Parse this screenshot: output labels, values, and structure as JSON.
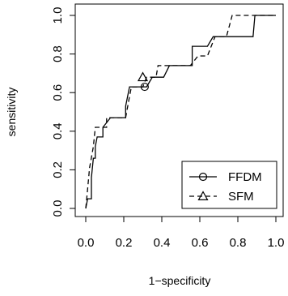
{
  "chart_data": {
    "type": "line",
    "title": "",
    "xlabel": "1−specificity",
    "ylabel": "sensitivity",
    "xlim": [
      0,
      1
    ],
    "ylim": [
      0,
      1
    ],
    "xticks": [
      "0.0",
      "0.2",
      "0.4",
      "0.6",
      "0.8",
      "1.0"
    ],
    "yticks": [
      "0.0",
      "0.2",
      "0.4",
      "0.6",
      "0.8",
      "1.0"
    ],
    "grid": false,
    "legend_position": "bottom-right",
    "series": [
      {
        "name": "FFDM",
        "line_style": "solid",
        "marker": "circle",
        "marker_point": [
          0.31,
          0.63
        ],
        "points": [
          [
            0.0,
            0.0
          ],
          [
            0.01,
            0.05
          ],
          [
            0.03,
            0.05
          ],
          [
            0.03,
            0.16
          ],
          [
            0.04,
            0.26
          ],
          [
            0.05,
            0.26
          ],
          [
            0.05,
            0.32
          ],
          [
            0.06,
            0.37
          ],
          [
            0.09,
            0.37
          ],
          [
            0.09,
            0.42
          ],
          [
            0.13,
            0.47
          ],
          [
            0.21,
            0.47
          ],
          [
            0.21,
            0.53
          ],
          [
            0.22,
            0.58
          ],
          [
            0.23,
            0.63
          ],
          [
            0.32,
            0.63
          ],
          [
            0.35,
            0.68
          ],
          [
            0.41,
            0.68
          ],
          [
            0.44,
            0.74
          ],
          [
            0.56,
            0.74
          ],
          [
            0.56,
            0.84
          ],
          [
            0.64,
            0.84
          ],
          [
            0.67,
            0.89
          ],
          [
            0.88,
            0.89
          ],
          [
            0.89,
            1.0
          ],
          [
            1.0,
            1.0
          ]
        ]
      },
      {
        "name": "SFM",
        "line_style": "dashed",
        "marker": "triangle",
        "marker_point": [
          0.3,
          0.68
        ],
        "points": [
          [
            0.0,
            0.0
          ],
          [
            0.01,
            0.1
          ],
          [
            0.02,
            0.21
          ],
          [
            0.04,
            0.32
          ],
          [
            0.05,
            0.42
          ],
          [
            0.11,
            0.42
          ],
          [
            0.11,
            0.47
          ],
          [
            0.21,
            0.47
          ],
          [
            0.23,
            0.58
          ],
          [
            0.24,
            0.63
          ],
          [
            0.3,
            0.63
          ],
          [
            0.32,
            0.68
          ],
          [
            0.37,
            0.68
          ],
          [
            0.38,
            0.74
          ],
          [
            0.55,
            0.74
          ],
          [
            0.59,
            0.79
          ],
          [
            0.64,
            0.79
          ],
          [
            0.68,
            0.89
          ],
          [
            0.74,
            0.89
          ],
          [
            0.77,
            1.0
          ],
          [
            1.0,
            1.0
          ]
        ]
      }
    ]
  }
}
